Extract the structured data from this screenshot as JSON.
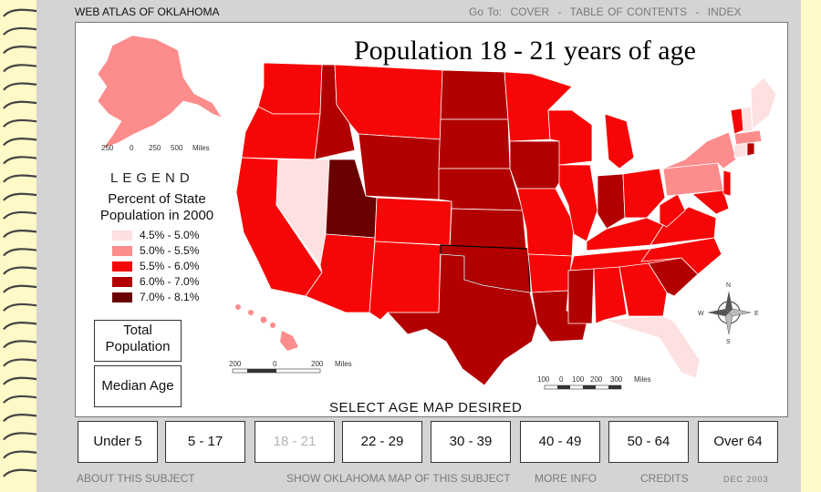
{
  "header": {
    "atlas_title": "WEB ATLAS OF OKLAHOMA",
    "goto_label": "Go To:",
    "nav": [
      "COVER",
      "-",
      "TABLE OF CONTENTS",
      "-",
      "INDEX"
    ]
  },
  "map": {
    "title": "Population 18 - 21 years of age",
    "scale_alaska": [
      "250",
      "0",
      "250",
      "500",
      "Miles"
    ],
    "scale_hawaii": [
      "200",
      "0",
      "200",
      "Miles"
    ],
    "scale_main": [
      "100",
      "0",
      "100",
      "200",
      "300",
      "Miles"
    ],
    "compass": {
      "n": "N",
      "s": "S",
      "e": "E",
      "w": "W"
    }
  },
  "legend": {
    "heading": "LEGEND",
    "subtitle_line1": "Percent of State",
    "subtitle_line2": "Population in 2000",
    "classes": [
      {
        "label": "4.5% - 5.0%",
        "color": "#fde0e0"
      },
      {
        "label": "5.0% - 5.5%",
        "color": "#fd8c8c"
      },
      {
        "label": "5.5% - 6.0%",
        "color": "#f60606"
      },
      {
        "label": "6.0% - 7.0%",
        "color": "#b20000"
      },
      {
        "label": "7.0% - 8.1%",
        "color": "#6a0000"
      }
    ]
  },
  "side_buttons": {
    "total_population_line1": "Total",
    "total_population_line2": "Population",
    "median_age": "Median Age"
  },
  "age_select": {
    "label": "SELECT AGE MAP DESIRED",
    "buttons": [
      "Under 5",
      "5 - 17",
      "18 - 21",
      "22 - 29",
      "30 - 39",
      "40 - 49",
      "50 - 64",
      "Over 64"
    ],
    "active": "18 - 21"
  },
  "footer": {
    "about": "ABOUT THIS SUBJECT",
    "show_ok": "SHOW OKLAHOMA MAP OF THIS SUBJECT",
    "more_info": "MORE INFO",
    "credits": "CREDITS",
    "date": "DEC 2003"
  }
}
